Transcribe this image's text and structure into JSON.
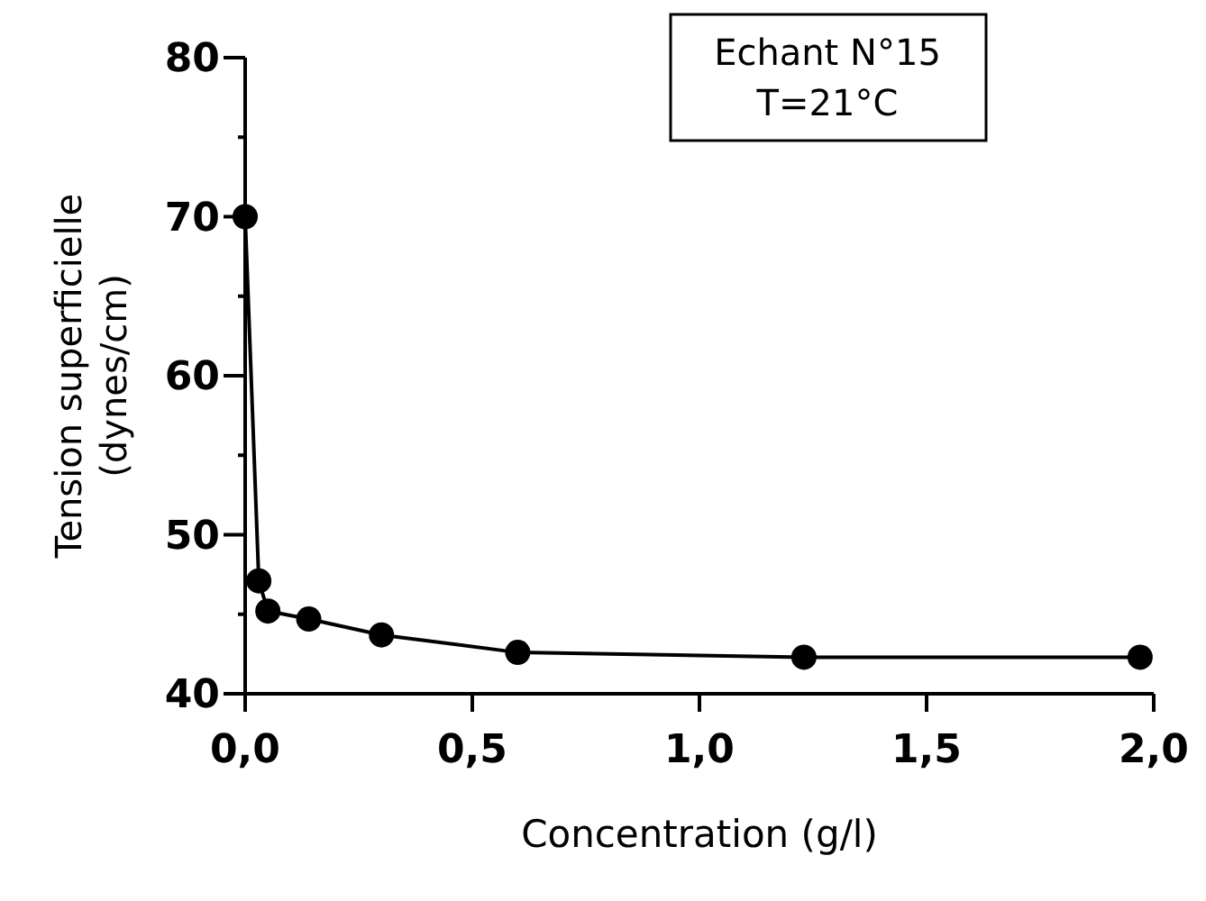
{
  "chart_data": {
    "type": "line",
    "xlabel": "Concentration (g/l)",
    "ylabel": "Tension superficielle (dynes/cm)",
    "annotations": [
      "Echant N°15",
      "T=21°C"
    ],
    "x": [
      0,
      0.03,
      0.05,
      0.14,
      0.3,
      0.6,
      1.23,
      1.97
    ],
    "series": [
      {
        "color": "#000000",
        "values": [
          70,
          47.1,
          45.2,
          44.7,
          43.7,
          42.6,
          42.3,
          42.3
        ]
      }
    ],
    "xlim": [
      0,
      2
    ],
    "xticks": [
      {
        "value": 0,
        "label": "0,0"
      },
      {
        "value": 0.5,
        "label": "0,5"
      },
      {
        "value": 1,
        "label": "1,0"
      },
      {
        "value": 1.5,
        "label": "1,5"
      },
      {
        "value": 2,
        "label": "2,0"
      }
    ],
    "ylim": [
      40,
      80
    ],
    "yticks": [
      40,
      {
        "value": 45,
        "label": null
      },
      50,
      {
        "value": 55,
        "label": null
      },
      60,
      {
        "value": 65,
        "label": null
      },
      70,
      {
        "value": 75,
        "label": null
      },
      80
    ],
    "marker": "circle",
    "line_style": "solid",
    "grid": false
  }
}
